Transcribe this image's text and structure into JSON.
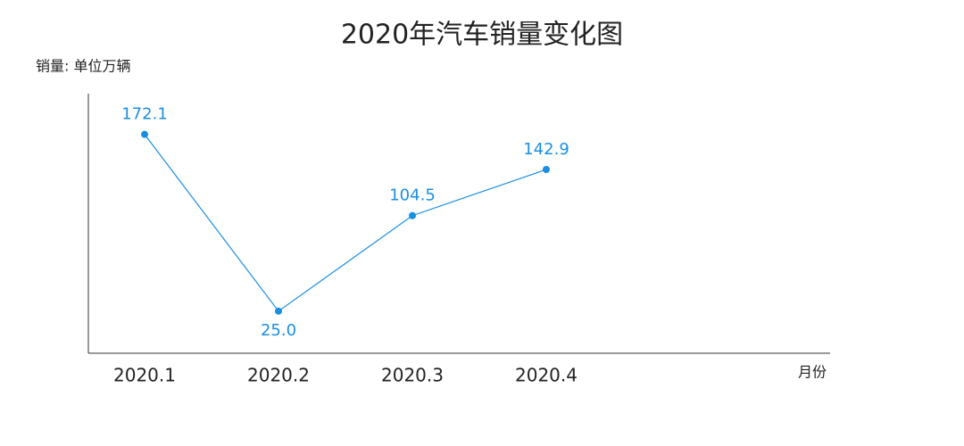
{
  "chart_data": {
    "type": "line",
    "title": "2020年汽车销量变化图",
    "y_label": "销量: 单位万辆",
    "x_label": "月份",
    "categories": [
      "2020.1",
      "2020.2",
      "2020.3",
      "2020.4"
    ],
    "values": [
      172.1,
      25.0,
      104.5,
      142.9
    ],
    "value_labels": [
      "172.1",
      "25.0",
      "104.5",
      "142.9"
    ],
    "color": "#1a8fe0",
    "ylim": [
      -10,
      206
    ]
  }
}
